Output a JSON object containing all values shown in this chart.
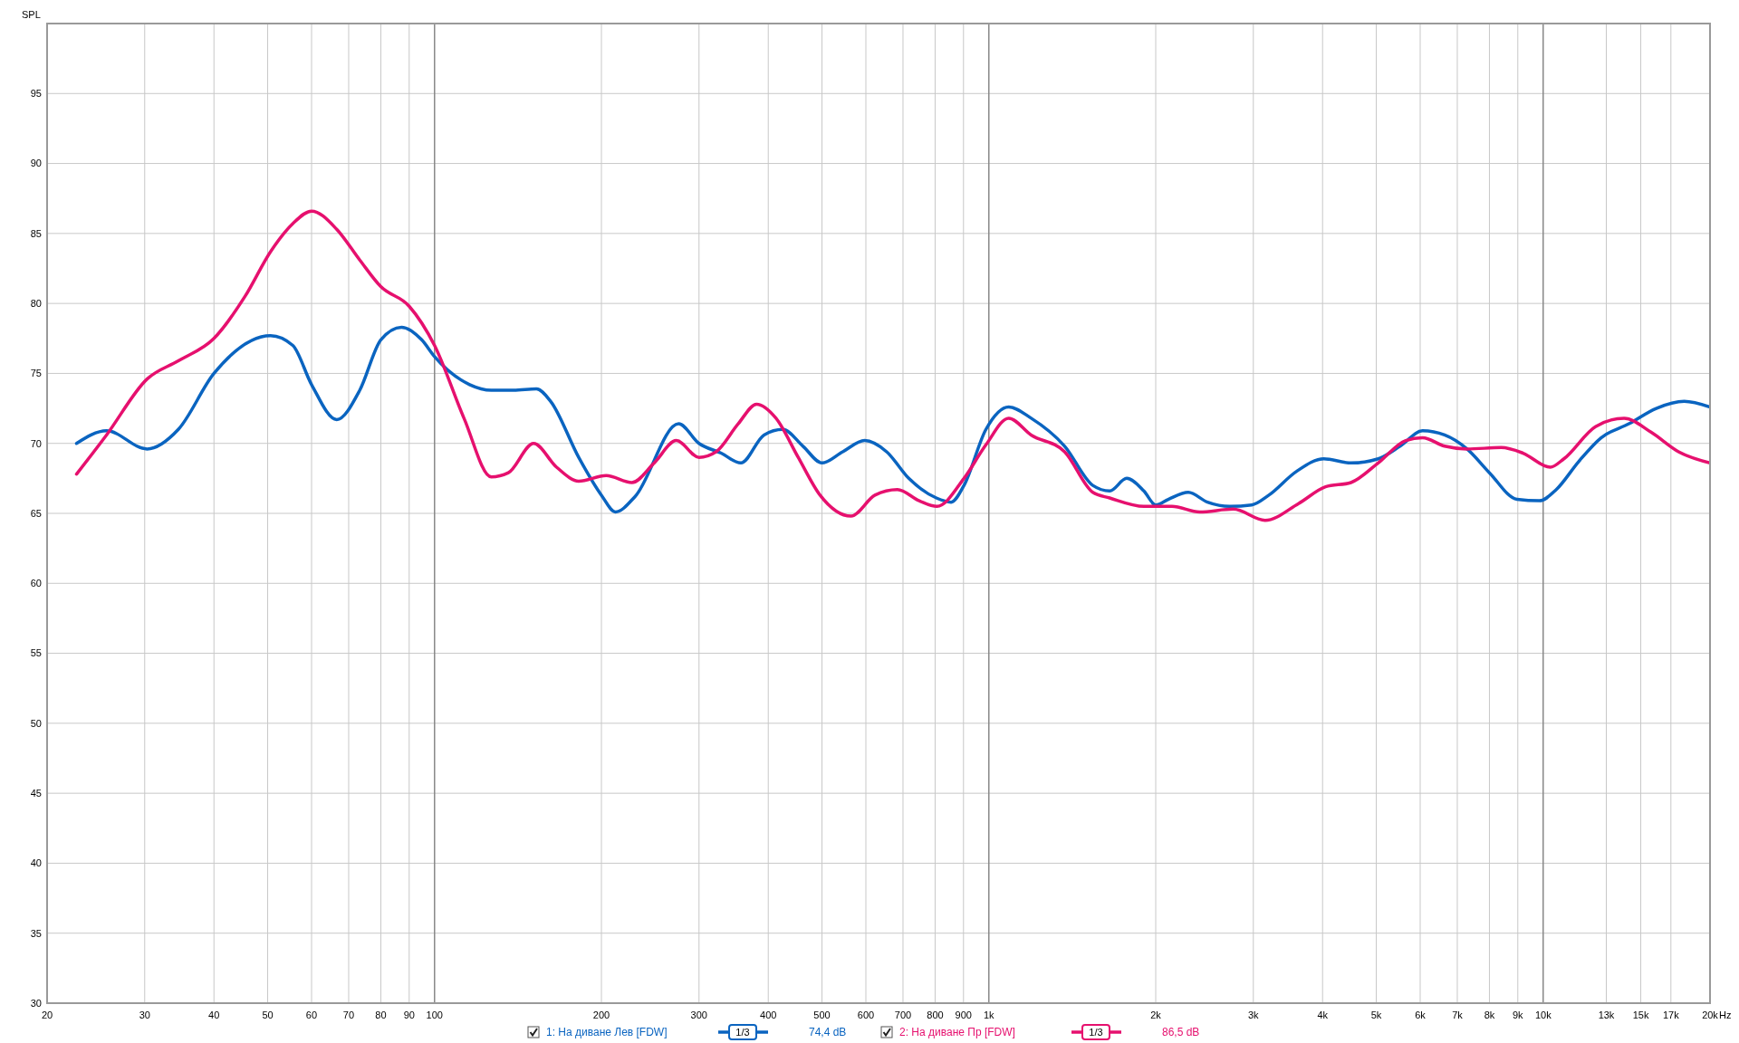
{
  "chart_data": {
    "type": "line",
    "ylabel": "SPL",
    "log": "x",
    "grid": true,
    "legend": "bottom",
    "line_style": "solid",
    "marker": "none",
    "xlim": [
      20,
      20000
    ],
    "ylim": [
      30,
      100
    ],
    "xticks": [
      20,
      30,
      40,
      50,
      60,
      70,
      80,
      90,
      100,
      200,
      300,
      400,
      500,
      600,
      700,
      800,
      900,
      {
        "value": 1000,
        "label": "1k"
      },
      {
        "value": 2000,
        "label": "2k"
      },
      {
        "value": 3000,
        "label": "3k"
      },
      {
        "value": 4000,
        "label": "4k"
      },
      {
        "value": 5000,
        "label": "5k"
      },
      {
        "value": 6000,
        "label": "6k"
      },
      {
        "value": 7000,
        "label": "7k"
      },
      {
        "value": 8000,
        "label": "8k"
      },
      {
        "value": 9000,
        "label": "9k"
      },
      {
        "value": 10000,
        "label": "10k"
      },
      {
        "value": 13000,
        "label": "13k"
      },
      {
        "value": 15000,
        "label": "15k"
      },
      {
        "value": 17000,
        "label": "17k"
      },
      {
        "value": 20000,
        "label": "20k"
      }
    ],
    "xlabel": "Hz",
    "yticks": [
      30,
      35,
      40,
      45,
      50,
      55,
      60,
      65,
      70,
      75,
      80,
      85,
      90,
      95
    ],
    "annotations": [
      "1/3",
      "74,4 dB",
      "1/3",
      "86,5 dB"
    ],
    "series": [
      {
        "name": "1: На диване Лев [FDW]",
        "color": "#0a64c0",
        "x": [
          22.6,
          25.6,
          30.3,
          34.5,
          40,
          50.6,
          55.5,
          60,
          66.6,
          73.3,
          80,
          87.2,
          94.8,
          100,
          115.7,
          126.6,
          138.9,
          152.7,
          162,
          182,
          200,
          212,
          230,
          275.6,
          300,
          329,
          357,
          393,
          425,
          462,
          500,
          545,
          597,
          654,
          717,
          804,
          855,
          902,
          988,
          1086,
          1192,
          1370,
          1540,
          1652,
          1773,
          1904,
          2000,
          2107,
          2290,
          2480,
          2720,
          2980,
          3200,
          3590,
          4020,
          4500,
          5040,
          5520,
          6060,
          6640,
          7290,
          8000,
          8970,
          9850,
          10560,
          11590,
          12720,
          14280,
          16000,
          17970,
          20000
        ],
        "values": [
          70.0,
          70.9,
          69.6,
          71,
          75,
          77.7,
          77,
          74.2,
          71.7,
          73.8,
          77.4,
          78.3,
          77.4,
          76.2,
          74.2,
          73.8,
          73.8,
          73.9,
          73,
          69,
          66.3,
          65.1,
          66.2,
          71.4,
          70.0,
          69.3,
          68.6,
          70.6,
          71,
          69.8,
          68.6,
          69.4,
          70.2,
          69.4,
          67.5,
          66.1,
          65.8,
          67,
          71,
          72.6,
          71.8,
          69.8,
          67,
          66.6,
          67.5,
          66.6,
          65.6,
          66,
          66.5,
          65.8,
          65.5,
          65.6,
          66.3,
          68,
          68.9,
          68.6,
          68.9,
          69.8,
          70.9,
          70.6,
          69.6,
          67.9,
          66,
          65.9,
          66.7,
          68.7,
          70.4,
          71.4,
          72.5,
          73,
          72.6
        ]
      },
      {
        "name": "2: На диване Пр [FDW]",
        "color": "#e6106e",
        "x": [
          22.6,
          25.6,
          30.3,
          34.5,
          40,
          45.5,
          50.6,
          55.5,
          60,
          66.6,
          73.3,
          80,
          90,
          100,
          113,
          126.6,
          135.9,
          150.9,
          166,
          182,
          204,
          227,
          249,
          273,
          300,
          322,
          353,
          381,
          413,
          453,
          496,
          564,
          623,
          684,
          749,
          806,
          902,
          988,
          1086,
          1192,
          1370,
          1540,
          1652,
          1904,
          2140,
          2400,
          2760,
          3150,
          3620,
          4050,
          4500,
          5040,
          5650,
          6060,
          6640,
          7290,
          8400,
          9200,
          10300,
          10900,
          12430,
          14000,
          15650,
          17550,
          20000
        ],
        "values": [
          67.8,
          70.6,
          74.6,
          75.9,
          77.5,
          80.5,
          83.7,
          85.7,
          86.6,
          85.3,
          83.1,
          81.2,
          79.8,
          77,
          71.8,
          67.6,
          67.9,
          70,
          68.3,
          67.3,
          67.7,
          67.2,
          68.6,
          70.2,
          69,
          69.4,
          71.4,
          72.8,
          71.8,
          69,
          66.3,
          64.8,
          66.3,
          66.7,
          65.9,
          65.5,
          67.5,
          69.9,
          71.8,
          70.6,
          69.4,
          66.5,
          66.1,
          65.5,
          65.5,
          65.1,
          65.3,
          64.5,
          65.7,
          66.9,
          67.2,
          68.6,
          70.2,
          70.4,
          69.8,
          69.6,
          69.7,
          69.3,
          68.3,
          68.9,
          71.2,
          71.8,
          70.8,
          69.4,
          68.6
        ]
      }
    ]
  }
}
